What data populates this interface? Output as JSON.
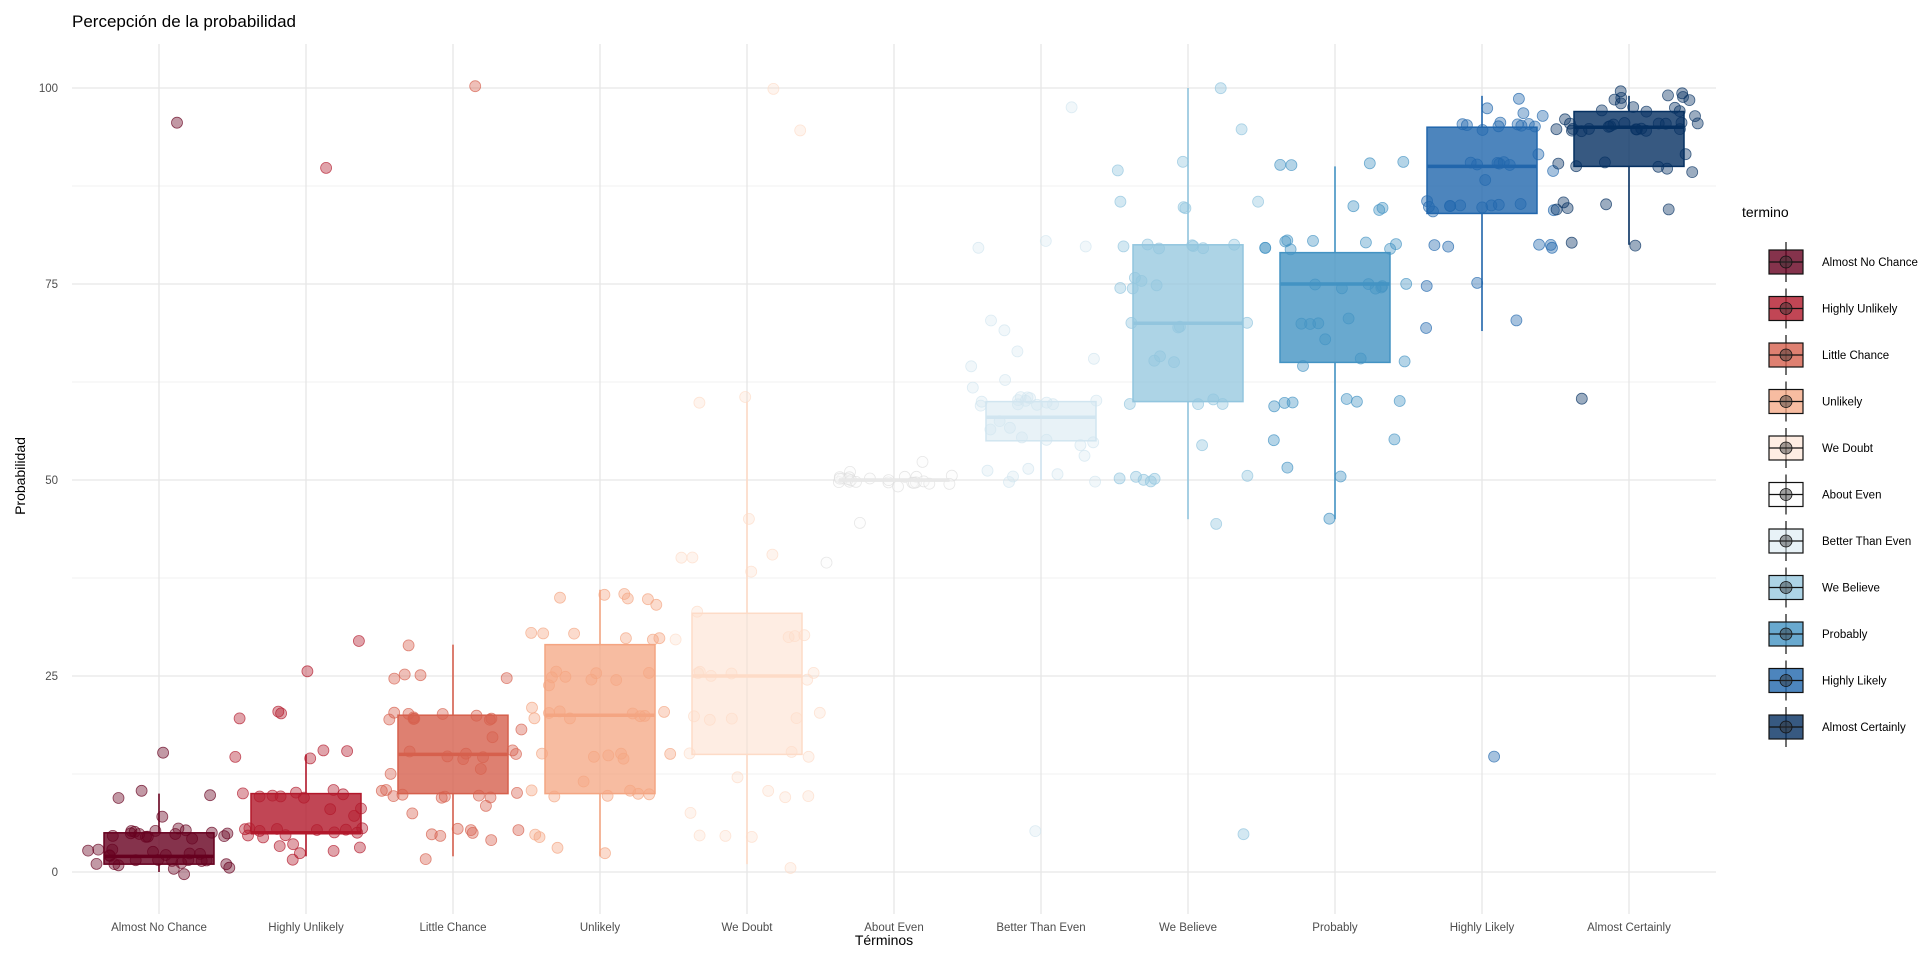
{
  "chart_data": {
    "type": "boxplot",
    "title": "Percepción de la probabilidad",
    "xlabel": "Términos",
    "ylabel": "Probabilidad",
    "ylim": [
      -5,
      105
    ],
    "y_ticks": [
      0,
      25,
      50,
      75,
      100
    ],
    "grid": true,
    "legend": {
      "title": "termino",
      "position": "right"
    },
    "categories": [
      "Almost No Chance",
      "Highly Unlikely",
      "Little Chance",
      "Unlikely",
      "We Doubt",
      "About Even",
      "Better Than Even",
      "We Believe",
      "Probably",
      "Highly Likely",
      "Almost Certainly"
    ],
    "colors": [
      "#67001f",
      "#b2182b",
      "#d6604d",
      "#f4a582",
      "#fddbc7",
      "#f7f7f7",
      "#d1e5f0",
      "#92c5de",
      "#4393c3",
      "#2166ac",
      "#053061"
    ],
    "series": [
      {
        "name": "Almost No Chance",
        "q1": 1,
        "median": 2,
        "q3": 5,
        "whisker_low": 0,
        "whisker_high": 10,
        "points": [
          95,
          15,
          10,
          10,
          10,
          7,
          5,
          5,
          5,
          5,
          5,
          5,
          5,
          5,
          5,
          5,
          5,
          5,
          5,
          5,
          4,
          3,
          3,
          3,
          2,
          2,
          2,
          2,
          2,
          2,
          2,
          2,
          1,
          1,
          1,
          1,
          1,
          1,
          1,
          1,
          1,
          1,
          1,
          0
        ]
      },
      {
        "name": "Highly Unlikely",
        "q1": 5,
        "median": 5,
        "q3": 10,
        "whisker_low": 2,
        "whisker_high": 15,
        "points": [
          90,
          30,
          25,
          20,
          20,
          20,
          15,
          15,
          15,
          15,
          10,
          10,
          10,
          10,
          10,
          10,
          10,
          10,
          8,
          8,
          7,
          5,
          5,
          5,
          5,
          5,
          5,
          5,
          5,
          5,
          5,
          5,
          5,
          3,
          3,
          3,
          3,
          3,
          2
        ]
      },
      {
        "name": "Little Chance",
        "q1": 10,
        "median": 15,
        "q3": 20,
        "whisker_low": 2,
        "whisker_high": 29,
        "points": [
          100,
          29,
          25,
          25,
          25,
          25,
          20,
          20,
          20,
          20,
          20,
          20,
          20,
          20,
          20,
          20,
          18,
          17,
          15,
          15,
          15,
          15,
          15,
          15,
          15,
          13,
          12,
          10,
          10,
          10,
          10,
          10,
          10,
          10,
          10,
          10,
          8,
          7,
          5,
          5,
          5,
          5,
          5,
          5,
          4,
          2
        ]
      },
      {
        "name": "Unlikely",
        "q1": 10,
        "median": 20,
        "q3": 29,
        "whisker_low": 2,
        "whisker_high": 36,
        "points": [
          36,
          35,
          35,
          35,
          35,
          34,
          30,
          30,
          30,
          30,
          30,
          30,
          25,
          25,
          25,
          25,
          25,
          25,
          25,
          24,
          21,
          20,
          20,
          20,
          20,
          20,
          20,
          20,
          20,
          15,
          15,
          15,
          15,
          15,
          15,
          12,
          10,
          10,
          10,
          10,
          10,
          10,
          5,
          5,
          3,
          2
        ]
      },
      {
        "name": "We Doubt",
        "q1": 15,
        "median": 25,
        "q3": 33,
        "whisker_low": 1,
        "whisker_high": 60,
        "points": [
          100,
          95,
          60,
          60,
          45,
          40,
          40,
          40,
          38,
          33,
          30,
          30,
          30,
          30,
          25,
          25,
          25,
          25,
          25,
          25,
          20,
          20,
          20,
          20,
          20,
          15,
          15,
          15,
          12,
          10,
          10,
          10,
          7,
          5,
          5,
          5,
          1
        ]
      },
      {
        "name": "About Even",
        "q1": 50,
        "median": 50,
        "q3": 50,
        "whisker_low": 50,
        "whisker_high": 50,
        "points": [
          52,
          51,
          50,
          50,
          50,
          50,
          50,
          50,
          50,
          50,
          50,
          50,
          50,
          50,
          50,
          50,
          50,
          50,
          50,
          50,
          50,
          50,
          50,
          49,
          45,
          40
        ]
      },
      {
        "name": "Better Than Even",
        "q1": 55,
        "median": 58,
        "q3": 60,
        "whisker_low": 50,
        "whisker_high": 60,
        "points": [
          98,
          80,
          80,
          80,
          70,
          69,
          67,
          65,
          65,
          63,
          62,
          60,
          60,
          60,
          60,
          60,
          60,
          60,
          60,
          60,
          60,
          60,
          60,
          58,
          57,
          56,
          55,
          55,
          55,
          55,
          53,
          51,
          51,
          51,
          51,
          50,
          50,
          5
        ]
      },
      {
        "name": "We Believe",
        "q1": 60,
        "median": 70,
        "q3": 80,
        "whisker_low": 45,
        "whisker_high": 100,
        "points": [
          100,
          95,
          90,
          90,
          85,
          85,
          85,
          85,
          80,
          80,
          80,
          80,
          80,
          80,
          80,
          76,
          75,
          75,
          75,
          75,
          70,
          70,
          70,
          70,
          66,
          65,
          65,
          60,
          60,
          60,
          60,
          55,
          51,
          50,
          50,
          50,
          50,
          50,
          45,
          5
        ]
      },
      {
        "name": "Probably",
        "q1": 65,
        "median": 75,
        "q3": 79,
        "whisker_low": 45,
        "whisker_high": 90,
        "points": [
          90,
          90,
          90,
          90,
          85,
          85,
          85,
          80,
          80,
          80,
          80,
          80,
          80,
          80,
          80,
          80,
          75,
          75,
          75,
          75,
          75,
          75,
          75,
          70,
          70,
          70,
          70,
          68,
          65,
          65,
          65,
          60,
          60,
          60,
          60,
          60,
          60,
          55,
          55,
          51,
          50,
          45
        ]
      },
      {
        "name": "Highly Likely",
        "q1": 84,
        "median": 90,
        "q3": 95,
        "whisker_low": 69,
        "whisker_high": 99,
        "points": [
          99,
          98,
          97,
          96,
          96,
          95,
          95,
          95,
          95,
          95,
          95,
          95,
          95,
          92,
          90,
          90,
          90,
          90,
          90,
          90,
          90,
          88,
          85,
          85,
          85,
          85,
          85,
          85,
          85,
          85,
          85,
          85,
          84,
          80,
          80,
          80,
          80,
          80,
          75,
          75,
          70,
          69,
          15
        ]
      },
      {
        "name": "Almost Certainly",
        "q1": 90,
        "median": 95,
        "q3": 97,
        "whisker_low": 80,
        "whisker_high": 99,
        "points": [
          99,
          99,
          99,
          99,
          99,
          98,
          98,
          98,
          98,
          98,
          97,
          97,
          97,
          96,
          96,
          95,
          95,
          95,
          95,
          95,
          95,
          95,
          95,
          95,
          95,
          95,
          95,
          95,
          95,
          95,
          95,
          95,
          95,
          95,
          92,
          90,
          90,
          90,
          90,
          90,
          89,
          85,
          85,
          85,
          85,
          85,
          80,
          80,
          60
        ]
      }
    ]
  }
}
